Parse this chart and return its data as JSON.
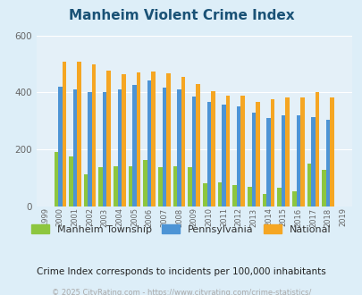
{
  "title": "Manheim Violent Crime Index",
  "title_color": "#1a5276",
  "subtitle": "Crime Index corresponds to incidents per 100,000 inhabitants",
  "copyright": "© 2025 CityRating.com - https://www.cityrating.com/crime-statistics/",
  "years": [
    1999,
    2000,
    2001,
    2002,
    2003,
    2004,
    2005,
    2006,
    2007,
    2008,
    2009,
    2010,
    2011,
    2012,
    2013,
    2014,
    2015,
    2016,
    2017,
    2018,
    2019
  ],
  "manheim": [
    0,
    192,
    175,
    113,
    138,
    140,
    140,
    163,
    138,
    140,
    138,
    82,
    85,
    75,
    68,
    45,
    65,
    52,
    152,
    128,
    0
  ],
  "pennsylvania": [
    0,
    420,
    410,
    402,
    400,
    412,
    425,
    442,
    418,
    410,
    385,
    368,
    357,
    350,
    330,
    310,
    320,
    320,
    312,
    305,
    0
  ],
  "national": [
    0,
    507,
    507,
    497,
    475,
    463,
    470,
    474,
    467,
    455,
    430,
    405,
    390,
    390,
    368,
    375,
    383,
    383,
    400,
    383,
    0
  ],
  "manheim_color": "#8dc63f",
  "pennsylvania_color": "#4d94d5",
  "national_color": "#f5a623",
  "background_color": "#ddeef8",
  "plot_bg": "#e4f0f8",
  "ylim": [
    0,
    600
  ],
  "yticks": [
    0,
    200,
    400,
    600
  ],
  "bar_width": 0.27,
  "legend_labels": [
    "Manheim Township",
    "Pennsylvania",
    "National"
  ]
}
